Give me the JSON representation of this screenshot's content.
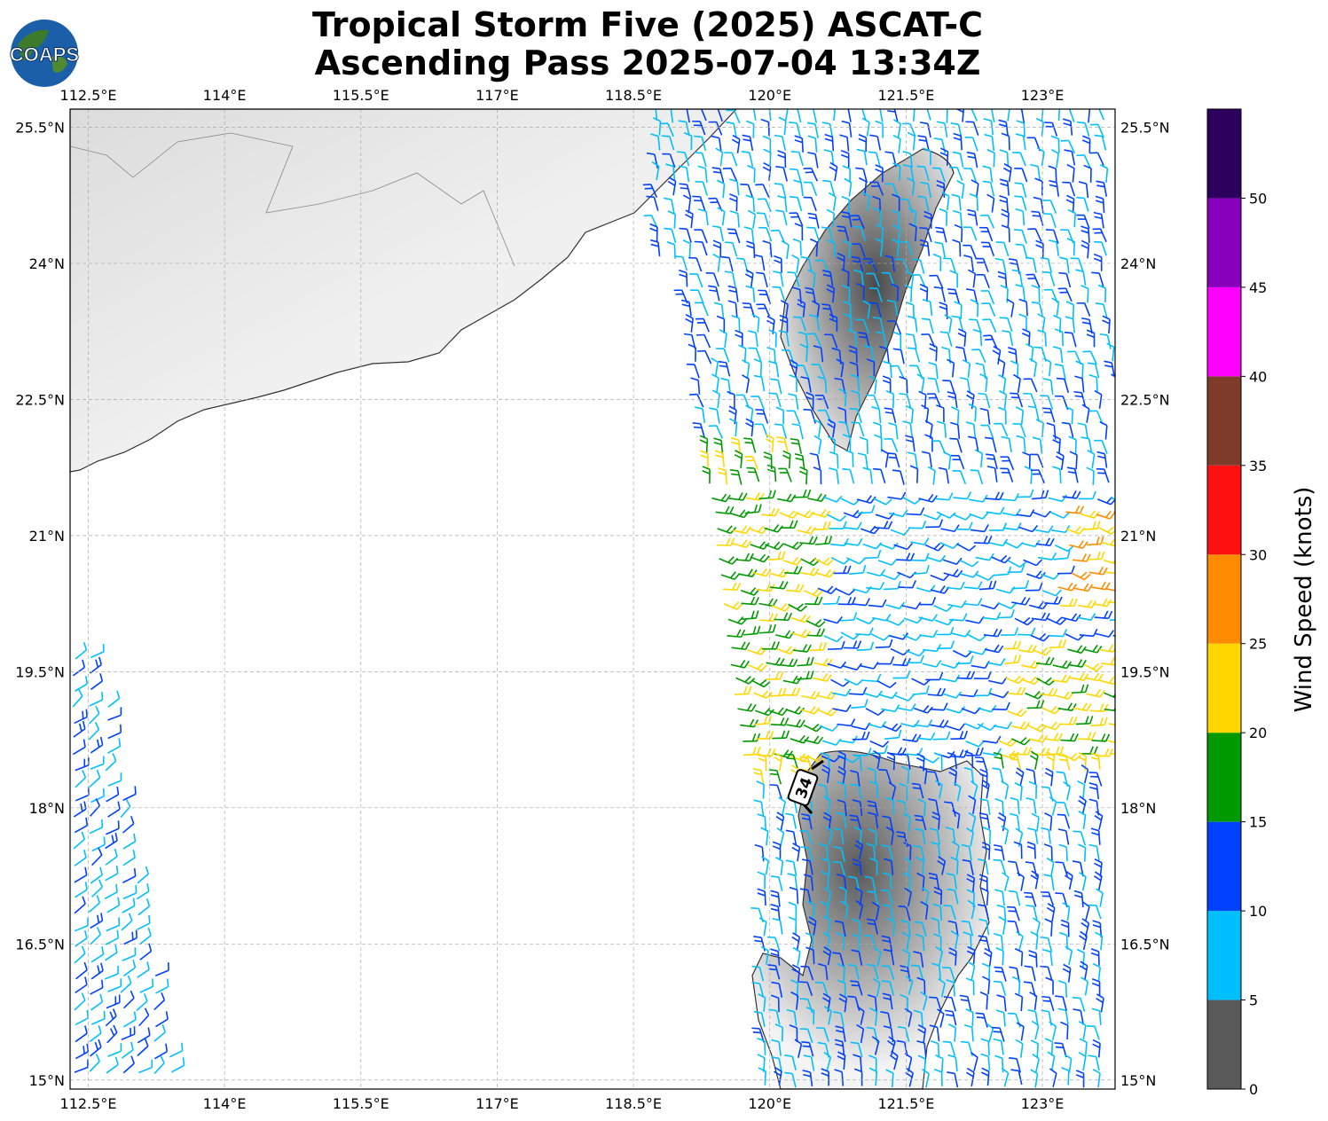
{
  "title_line1": "Tropical Storm Five (2025) ASCAT-C",
  "title_line2": "Ascending Pass 2025-07-04 13:34Z",
  "logo_text": "COAPS",
  "map": {
    "lon_labels": [
      "112.5°E",
      "114°E",
      "115.5°E",
      "117°E",
      "118.5°E",
      "120°E",
      "121.5°E",
      "123°E"
    ],
    "lat_labels": [
      "25.5°N",
      "24°N",
      "22.5°N",
      "21°N",
      "19.5°N",
      "18°N",
      "16.5°N",
      "15°N"
    ],
    "storm_marker": "34",
    "lon_range": [
      112.3,
      123.8
    ],
    "lat_range": [
      14.9,
      25.7
    ],
    "gridlines": true
  },
  "colorbar": {
    "label": "Wind Speed (knots)",
    "ticks": [
      "0",
      "5",
      "10",
      "15",
      "20",
      "25",
      "30",
      "35",
      "40",
      "45",
      "50"
    ],
    "bins": [
      {
        "from": 0,
        "to": 5,
        "color": "#595959"
      },
      {
        "from": 5,
        "to": 10,
        "color": "#00bfff"
      },
      {
        "from": 10,
        "to": 15,
        "color": "#0040ff"
      },
      {
        "from": 15,
        "to": 20,
        "color": "#009900"
      },
      {
        "from": 20,
        "to": 25,
        "color": "#ffd700"
      },
      {
        "from": 25,
        "to": 30,
        "color": "#ff8c00"
      },
      {
        "from": 30,
        "to": 35,
        "color": "#ff1010"
      },
      {
        "from": 35,
        "to": 40,
        "color": "#7f3b2a"
      },
      {
        "from": 40,
        "to": 45,
        "color": "#ff00ff"
      },
      {
        "from": 45,
        "to": 50,
        "color": "#8800bb"
      },
      {
        "from": 50,
        "to": 55,
        "color": "#2e005e"
      }
    ]
  }
}
